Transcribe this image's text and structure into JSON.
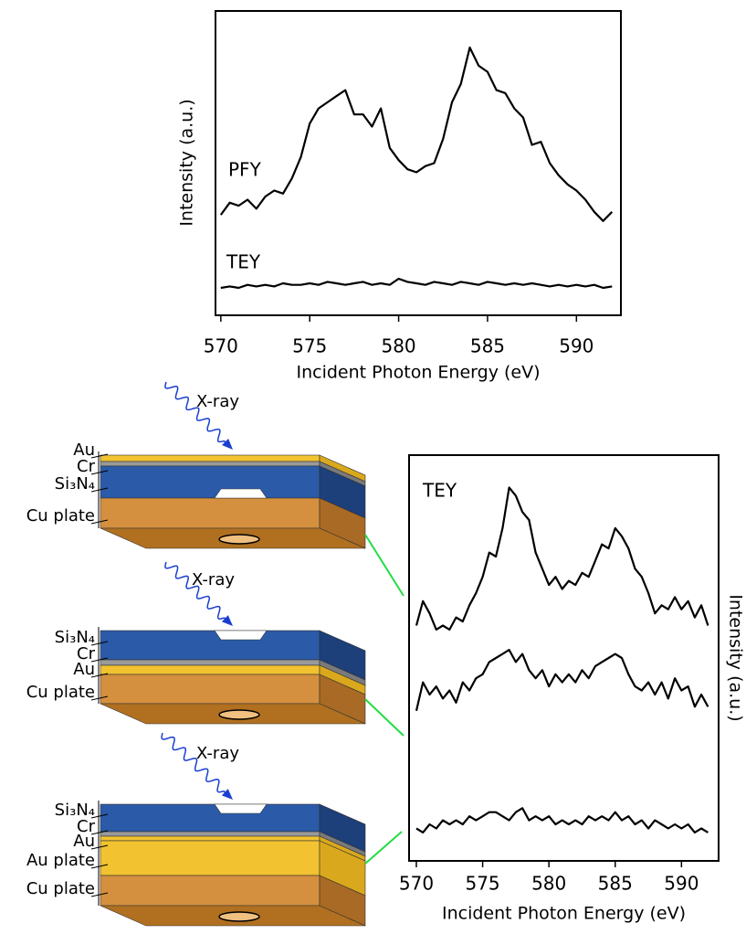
{
  "chart_data": [
    {
      "type": "line",
      "xlabel": "Incident Photon Energy (eV)",
      "ylabel": "Intensity (a.u.)",
      "x": [
        570,
        570.5,
        571,
        571.5,
        572,
        572.5,
        573,
        573.5,
        574,
        574.5,
        575,
        575.5,
        576,
        576.5,
        577,
        577.5,
        578,
        578.5,
        579,
        579.5,
        580,
        580.5,
        581,
        581.5,
        582,
        582.5,
        583,
        583.5,
        584,
        584.5,
        585,
        585.5,
        586,
        586.5,
        587,
        587.5,
        588,
        588.5,
        589,
        589.5,
        590,
        590.5,
        591,
        591.5,
        592
      ],
      "xlim": [
        569.7,
        592.5
      ],
      "xticks": [
        570,
        575,
        580,
        585,
        590
      ],
      "ylim": [
        0,
        100
      ],
      "series": [
        {
          "name": "PFY",
          "color": "#000000",
          "values": [
            33,
            37,
            36,
            38,
            35,
            39,
            41,
            40,
            45,
            52,
            63,
            68,
            70,
            72,
            74,
            66,
            66,
            62,
            68,
            55,
            51,
            48,
            47,
            49,
            50,
            58,
            70,
            76,
            88,
            82,
            80,
            74,
            73,
            68,
            65,
            56,
            57,
            50,
            46,
            43,
            41,
            38,
            34,
            31,
            34
          ]
        },
        {
          "name": "TEY",
          "color": "#000000",
          "values": [
            9,
            9.5,
            9,
            10,
            9.5,
            10,
            9.5,
            10.5,
            10,
            10,
            10.5,
            10,
            11,
            10.5,
            10,
            10.5,
            11,
            10,
            10.5,
            10,
            12,
            11,
            10.5,
            10,
            11,
            10.5,
            10,
            11,
            10.5,
            10,
            11,
            10.5,
            10,
            10.5,
            10,
            10.5,
            10,
            9.5,
            10,
            9.5,
            10,
            9.5,
            10,
            9,
            9.5
          ]
        }
      ]
    },
    {
      "type": "line",
      "xlabel": "Incident Photon Energy (eV)",
      "ylabel": "Intensity (a.u.)",
      "annotation": "TEY",
      "x": [
        570,
        570.5,
        571,
        571.5,
        572,
        572.5,
        573,
        573.5,
        574,
        574.5,
        575,
        575.5,
        576,
        576.5,
        577,
        577.5,
        578,
        578.5,
        579,
        579.5,
        580,
        580.5,
        581,
        581.5,
        582,
        582.5,
        583,
        583.5,
        584,
        584.5,
        585,
        585.5,
        586,
        586.5,
        587,
        587.5,
        588,
        588.5,
        589,
        589.5,
        590,
        590.5,
        591,
        591.5,
        592
      ],
      "xlim": [
        569.45,
        592.8
      ],
      "xticks": [
        570,
        575,
        580,
        585,
        590
      ],
      "ylim": [
        0,
        100
      ],
      "series": [
        {
          "color": "#000000",
          "values": [
            58,
            64,
            61,
            57,
            58,
            57,
            60,
            59,
            63,
            66,
            70,
            76,
            75,
            82,
            92,
            90,
            86,
            84,
            76,
            72,
            68,
            70,
            67,
            69,
            68,
            71,
            70,
            74,
            78,
            77,
            82,
            80,
            77,
            72,
            70,
            66,
            61,
            63,
            62,
            65,
            62,
            64,
            60,
            63,
            58
          ]
        },
        {
          "color": "#000000",
          "values": [
            37,
            44,
            41,
            43,
            40,
            42,
            39,
            44,
            42,
            45,
            46,
            49,
            50,
            51,
            52,
            49,
            51,
            47,
            45,
            47,
            43,
            46,
            44,
            46,
            44,
            47,
            45,
            48,
            49,
            50,
            51,
            50,
            46,
            43,
            42,
            44,
            41,
            44,
            40,
            45,
            42,
            43,
            38,
            41,
            38
          ]
        },
        {
          "color": "#000000",
          "values": [
            8,
            7,
            9,
            8,
            10,
            9,
            10,
            9,
            11,
            10,
            11,
            12,
            12,
            11,
            10,
            12,
            13,
            10,
            11,
            10,
            11,
            9,
            10,
            9,
            10,
            9,
            11,
            10,
            11,
            10,
            12,
            10,
            11,
            9,
            10,
            8,
            10,
            9,
            8,
            9,
            8,
            9,
            7,
            8,
            7
          ]
        }
      ]
    }
  ],
  "diagrams": [
    {
      "xray": "X-ray",
      "layers": [
        "Au",
        "Cr",
        "Si₃N₄",
        "Cu plate"
      ]
    },
    {
      "xray": "X-ray",
      "layers": [
        "Si₃N₄",
        "Cr",
        "Au",
        "Cu plate"
      ]
    },
    {
      "xray": "X-ray",
      "layers": [
        "Si₃N₄",
        "Cr",
        "Au",
        "Au plate",
        "Cu plate"
      ]
    }
  ]
}
